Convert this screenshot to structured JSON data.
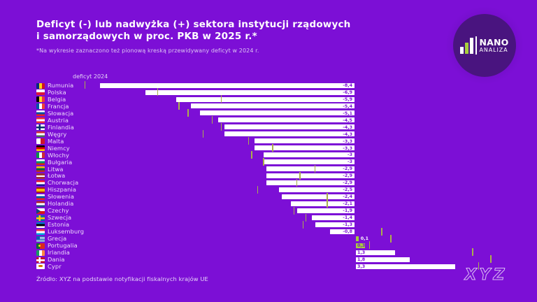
{
  "header": {
    "title_line1": "Deficyt (-) lub nadwyżka (+) sektora instytucji rządowych",
    "title_line2": "i samorządowych w proc. PKB w 2025 r.*",
    "subtitle": "*Na wykresie zaznaczono też pionową kreską przewidywany deficyt w 2024 r."
  },
  "logo": {
    "icon": "bar-chart-icon",
    "name_top": "NANO",
    "name_bottom": "ANALIZA"
  },
  "legend": {
    "deficit_2024_label": "deficyt 2024"
  },
  "footer": {
    "source": "Źródło: XYZ na podstawie notyfikacji fiskalnych krajów UE",
    "watermark": "XYZ"
  },
  "colors": {
    "background": "#7c0fd6",
    "bar": "#ffffff",
    "bar_accent_green": "#a8cf3b",
    "tick_2024": "#abb04b",
    "value_text_on_bar": "#7c0fd6",
    "label_text": "#eedcfb",
    "logo_circle": "#49147f"
  },
  "chart_data": {
    "type": "bar",
    "orientation": "horizontal",
    "title": "Deficyt (-) lub nadwyżka (+) sektora instytucji rządowych i samorządowych w proc. PKB w 2025 r.",
    "note": "Pionowa kreska oznacza przewidywany deficyt w 2024 r.",
    "unit": "proc. PKB",
    "xlabel": "",
    "ylabel": "",
    "xlim": [
      -10.6,
      6.0
    ],
    "grid": false,
    "legend_position": "top-left",
    "categories": [
      "Rumunia",
      "Polska",
      "Belgia",
      "Francja",
      "Słowacja",
      "Austria",
      "Finlandia",
      "Węgry",
      "Malta",
      "Niemcy",
      "Włochy",
      "Bułgaria",
      "Litwa",
      "Łotwa",
      "Chorwacja",
      "Hiszpania",
      "Słowenia",
      "Holandia",
      "Czechy",
      "Szwecja",
      "Estonia",
      "Luksemburg",
      "Grecja",
      "Portugalia",
      "Irlandia",
      "Dania",
      "Cypr"
    ],
    "flags": [
      "ro",
      "pl",
      "be",
      "fr",
      "sk",
      "at",
      "fi",
      "hu",
      "mt",
      "de",
      "it",
      "bg",
      "lt",
      "lv",
      "hr",
      "es",
      "si",
      "nl",
      "cz",
      "se",
      "ee",
      "lu",
      "gr",
      "pt",
      "ie",
      "dk",
      "cy"
    ],
    "series": [
      {
        "name": "deficyt/nadwyżka w 2025 r.",
        "values": [
          -8.4,
          -6.9,
          -5.9,
          -5.4,
          -5.1,
          -4.5,
          -4.3,
          -4.3,
          -3.3,
          -3.3,
          -3,
          -3,
          -2.9,
          -2.9,
          -2.9,
          -2.5,
          -2.4,
          -2.1,
          -1.9,
          -1.4,
          -1.3,
          -0.8,
          0.1,
          0.3,
          1.3,
          1.8,
          3.3
        ],
        "labels": [
          "-8,4",
          "-6,9",
          "-5,9",
          "-5,4",
          "-5,1",
          "-4,5",
          "-4,3",
          "-4,3",
          "-3,3",
          "-3,3",
          "-3",
          "-3",
          "-2,9",
          "-2,9",
          "-2,9",
          "-2,5",
          "-2,4",
          "-2,1",
          "-1,9",
          "-1,4",
          "-1,3",
          "-0,8",
          "0,1",
          "0,3",
          "1,3",
          "1,8",
          "3,3"
        ]
      },
      {
        "name": "deficyt 2024 (pionowa kreska)",
        "values": [
          -8.9,
          -6.5,
          -4.4,
          -5.8,
          -5.5,
          -4.7,
          -4.4,
          -5.0,
          -3.5,
          -2.7,
          -3.4,
          -3.0,
          -1.3,
          -1.8,
          -1.9,
          -3.2,
          -0.9,
          -0.9,
          -2.0,
          -1.6,
          -1.7,
          0.9,
          1.2,
          0.5,
          3.9,
          4.5,
          4.1
        ]
      }
    ],
    "accent_bar_categories": [
      "Grecja",
      "Portugalia"
    ]
  }
}
